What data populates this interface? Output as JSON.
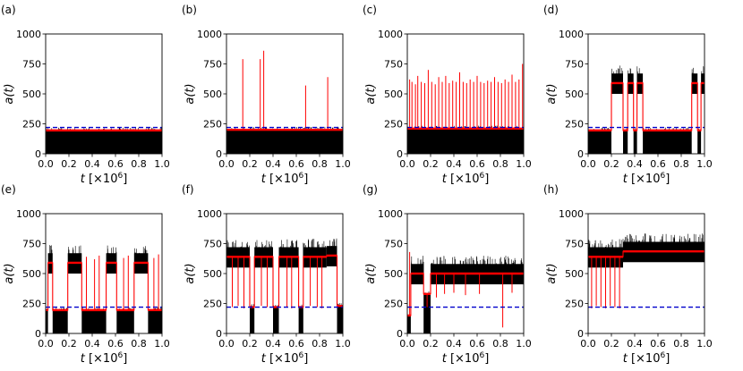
{
  "chart_data": [
    {
      "type": "line",
      "panel_label": "(a)",
      "xlabel": "t [×10",
      "xlabel_exp": "6",
      "xlabel_close": "]",
      "ylabel": "a(t)",
      "xlim": [
        0,
        1
      ],
      "ylim": [
        0,
        1000
      ],
      "xticks": [
        "0.0",
        "0.2",
        "0.4",
        "0.6",
        "0.8",
        "1.0"
      ],
      "yticks": [
        "0",
        "250",
        "500",
        "750",
        "1000"
      ],
      "threshold": 220,
      "segments": [
        [
          0,
          1,
          195
        ]
      ],
      "spikes": []
    },
    {
      "type": "line",
      "panel_label": "(b)",
      "xlabel": "t [×10",
      "xlabel_exp": "6",
      "xlabel_close": "]",
      "ylabel": "a(t)",
      "xlim": [
        0,
        1
      ],
      "ylim": [
        0,
        1000
      ],
      "xticks": [
        "0.0",
        "0.2",
        "0.4",
        "0.6",
        "0.8",
        "1.0"
      ],
      "yticks": [
        "0",
        "250",
        "500",
        "750",
        "1000"
      ],
      "threshold": 220,
      "segments": [
        [
          0,
          1,
          200
        ]
      ],
      "spikes": [
        [
          0.14,
          790
        ],
        [
          0.29,
          790
        ],
        [
          0.32,
          860
        ],
        [
          0.68,
          570
        ],
        [
          0.87,
          640
        ]
      ]
    },
    {
      "type": "line",
      "panel_label": "(c)",
      "xlabel": "t [×10",
      "xlabel_exp": "6",
      "xlabel_close": "]",
      "ylabel": "a(t)",
      "xlim": [
        0,
        1
      ],
      "ylim": [
        0,
        1000
      ],
      "xticks": [
        "0.0",
        "0.2",
        "0.4",
        "0.6",
        "0.8",
        "1.0"
      ],
      "yticks": [
        "0",
        "250",
        "500",
        "750",
        "1000"
      ],
      "threshold": 220,
      "segments": [
        [
          0,
          1,
          210
        ]
      ],
      "spikes": [
        [
          0.02,
          620
        ],
        [
          0.04,
          600
        ],
        [
          0.07,
          580
        ],
        [
          0.09,
          650
        ],
        [
          0.12,
          600
        ],
        [
          0.15,
          590
        ],
        [
          0.18,
          700
        ],
        [
          0.21,
          600
        ],
        [
          0.24,
          580
        ],
        [
          0.27,
          640
        ],
        [
          0.3,
          600
        ],
        [
          0.33,
          650
        ],
        [
          0.36,
          590
        ],
        [
          0.39,
          610
        ],
        [
          0.42,
          600
        ],
        [
          0.45,
          680
        ],
        [
          0.48,
          600
        ],
        [
          0.51,
          590
        ],
        [
          0.54,
          620
        ],
        [
          0.57,
          600
        ],
        [
          0.6,
          650
        ],
        [
          0.63,
          600
        ],
        [
          0.66,
          590
        ],
        [
          0.69,
          610
        ],
        [
          0.72,
          600
        ],
        [
          0.75,
          640
        ],
        [
          0.78,
          600
        ],
        [
          0.81,
          590
        ],
        [
          0.84,
          620
        ],
        [
          0.87,
          600
        ],
        [
          0.9,
          660
        ],
        [
          0.93,
          600
        ],
        [
          0.96,
          620
        ],
        [
          0.99,
          750
        ]
      ]
    },
    {
      "type": "line",
      "panel_label": "(d)",
      "xlabel": "t [×10",
      "xlabel_exp": "6",
      "xlabel_close": "]",
      "ylabel": "a(t)",
      "xlim": [
        0,
        1
      ],
      "ylim": [
        0,
        1000
      ],
      "xticks": [
        "0.0",
        "0.2",
        "0.4",
        "0.6",
        "0.8",
        "1.0"
      ],
      "yticks": [
        "0",
        "250",
        "500",
        "750",
        "1000"
      ],
      "threshold": 220,
      "segments": [
        [
          0,
          0.2,
          195
        ],
        [
          0.2,
          0.3,
          590
        ],
        [
          0.3,
          0.34,
          195
        ],
        [
          0.34,
          0.39,
          590
        ],
        [
          0.39,
          0.42,
          195
        ],
        [
          0.42,
          0.47,
          590
        ],
        [
          0.47,
          0.89,
          195
        ],
        [
          0.89,
          0.94,
          590
        ],
        [
          0.94,
          0.97,
          195
        ],
        [
          0.97,
          1.0,
          590
        ]
      ],
      "spikes": []
    },
    {
      "type": "line",
      "panel_label": "(e)",
      "xlabel": "t [×10",
      "xlabel_exp": "6",
      "xlabel_close": "]",
      "ylabel": "a(t)",
      "xlim": [
        0,
        1
      ],
      "ylim": [
        0,
        1000
      ],
      "xticks": [
        "0.0",
        "0.2",
        "0.4",
        "0.6",
        "0.8",
        "1.0"
      ],
      "yticks": [
        "0",
        "250",
        "500",
        "750",
        "1000"
      ],
      "threshold": 220,
      "segments": [
        [
          0,
          0.02,
          195
        ],
        [
          0.02,
          0.06,
          590
        ],
        [
          0.06,
          0.19,
          195
        ],
        [
          0.19,
          0.31,
          590
        ],
        [
          0.31,
          0.52,
          195
        ],
        [
          0.52,
          0.61,
          590
        ],
        [
          0.61,
          0.76,
          195
        ],
        [
          0.76,
          0.88,
          590
        ],
        [
          0.88,
          1.0,
          195
        ]
      ],
      "spikes": [
        [
          0.35,
          640
        ],
        [
          0.42,
          620
        ],
        [
          0.46,
          650
        ],
        [
          0.67,
          630
        ],
        [
          0.71,
          650
        ],
        [
          0.93,
          630
        ],
        [
          0.97,
          660
        ]
      ]
    },
    {
      "type": "line",
      "panel_label": "(f)",
      "xlabel": "t [×10",
      "xlabel_exp": "6",
      "xlabel_close": "]",
      "ylabel": "a(t)",
      "xlim": [
        0,
        1
      ],
      "ylim": [
        0,
        1000
      ],
      "xticks": [
        "0.0",
        "0.2",
        "0.4",
        "0.6",
        "0.8",
        "1.0"
      ],
      "yticks": [
        "0",
        "250",
        "500",
        "750",
        "1000"
      ],
      "threshold": 220,
      "segments": [
        [
          0,
          0.2,
          640
        ],
        [
          0.2,
          0.24,
          220
        ],
        [
          0.24,
          0.4,
          640
        ],
        [
          0.4,
          0.45,
          220
        ],
        [
          0.45,
          0.62,
          640
        ],
        [
          0.62,
          0.66,
          220
        ],
        [
          0.66,
          0.86,
          640
        ],
        [
          0.86,
          0.95,
          650
        ],
        [
          0.95,
          1.0,
          230
        ]
      ],
      "spikes": [
        [
          0.05,
          220
        ],
        [
          0.1,
          230
        ],
        [
          0.15,
          210
        ],
        [
          0.3,
          230
        ],
        [
          0.35,
          220
        ],
        [
          0.52,
          220
        ],
        [
          0.56,
          210
        ],
        [
          0.72,
          230
        ],
        [
          0.78,
          220
        ],
        [
          0.82,
          210
        ]
      ]
    },
    {
      "type": "line",
      "panel_label": "(g)",
      "xlabel": "t [×10",
      "xlabel_exp": "6",
      "xlabel_close": "]",
      "ylabel": "a(t)",
      "xlim": [
        0,
        1
      ],
      "ylim": [
        0,
        1000
      ],
      "xticks": [
        "0.0",
        "0.2",
        "0.4",
        "0.6",
        "0.8",
        "1.0"
      ],
      "yticks": [
        "0",
        "250",
        "500",
        "750",
        "1000"
      ],
      "threshold": 220,
      "segments": [
        [
          0,
          0.03,
          150
        ],
        [
          0.03,
          0.14,
          500
        ],
        [
          0.14,
          0.2,
          330
        ],
        [
          0.2,
          1.0,
          500
        ]
      ],
      "spikes": [
        [
          0.02,
          680
        ],
        [
          0.17,
          220
        ],
        [
          0.25,
          300
        ],
        [
          0.32,
          330
        ],
        [
          0.4,
          340
        ],
        [
          0.5,
          320
        ],
        [
          0.62,
          330
        ],
        [
          0.82,
          50
        ],
        [
          0.9,
          340
        ]
      ]
    },
    {
      "type": "line",
      "panel_label": "(h)",
      "xlabel": "t [×10",
      "xlabel_exp": "6",
      "xlabel_close": "]",
      "ylabel": "a(t)",
      "xlim": [
        0,
        1
      ],
      "ylim": [
        0,
        1000
      ],
      "xticks": [
        "0.0",
        "0.2",
        "0.4",
        "0.6",
        "0.8",
        "1.0"
      ],
      "yticks": [
        "0",
        "250",
        "500",
        "750",
        "1000"
      ],
      "threshold": 220,
      "segments": [
        [
          0,
          0.3,
          640
        ],
        [
          0.3,
          1.0,
          685
        ]
      ],
      "spikes": [
        [
          0.03,
          210
        ],
        [
          0.07,
          230
        ],
        [
          0.11,
          220
        ],
        [
          0.15,
          210
        ],
        [
          0.19,
          230
        ],
        [
          0.23,
          220
        ],
        [
          0.27,
          210
        ]
      ]
    }
  ],
  "colors": {
    "mean": "#ff0000",
    "raw": "#000000",
    "threshold": "#0000cc"
  }
}
